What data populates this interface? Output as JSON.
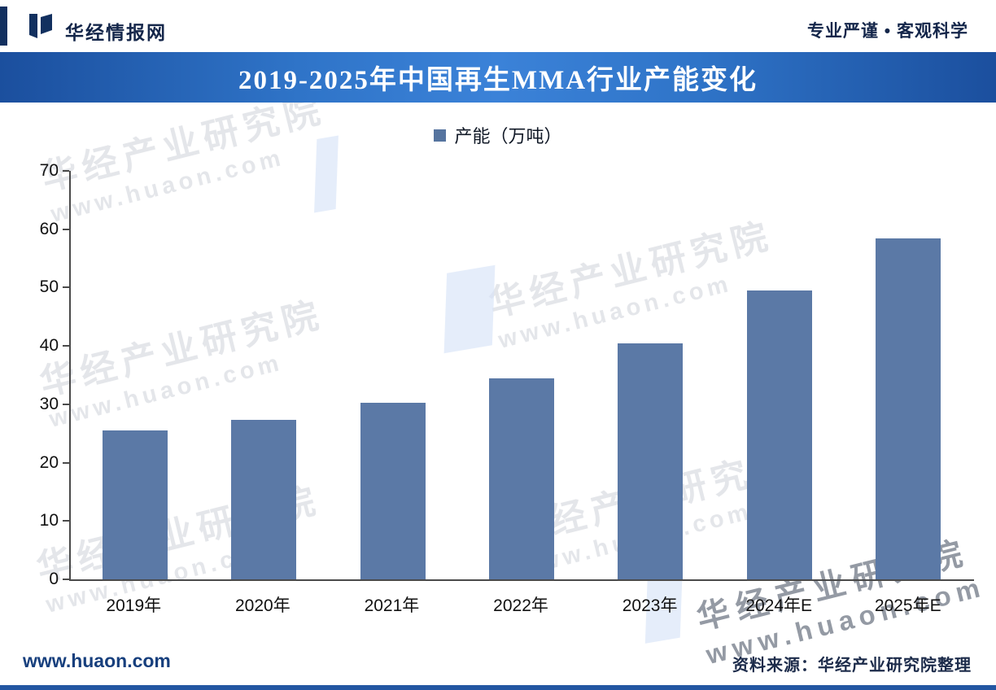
{
  "header": {
    "brand": "华经情报网",
    "slogan": "专业严谨 • 客观科学"
  },
  "banner": {
    "title": "2019-2025年中国再生MMA行业产能变化"
  },
  "legend": {
    "label": "产能（万吨）"
  },
  "chart_data": {
    "type": "bar",
    "title": "2019-2025年中国再生MMA行业产能变化",
    "categories": [
      "2019年",
      "2020年",
      "2021年",
      "2022年",
      "2023年",
      "2024年E",
      "2025年E"
    ],
    "series": [
      {
        "name": "产能（万吨）",
        "values": [
          25.5,
          27.4,
          30.3,
          34.4,
          40.5,
          49.5,
          58.4
        ]
      }
    ],
    "ylabel": "",
    "xlabel": "",
    "ylim": [
      0,
      70
    ],
    "yticks": [
      0,
      10,
      20,
      30,
      40,
      50,
      60,
      70
    ],
    "grid": false,
    "legend_position": "top",
    "bar_color": "#5b79a6"
  },
  "watermark": {
    "cn": "华经产业研究院",
    "url": "www.huaon.com"
  },
  "footer": {
    "site": "www.huaon.com",
    "source": "资料来源：华经产业研究院整理"
  },
  "colors": {
    "banner_blue": "#2f74c8",
    "bar": "#5b79a6",
    "footer_bar": "#2356a2",
    "navy_text": "#14264a"
  }
}
